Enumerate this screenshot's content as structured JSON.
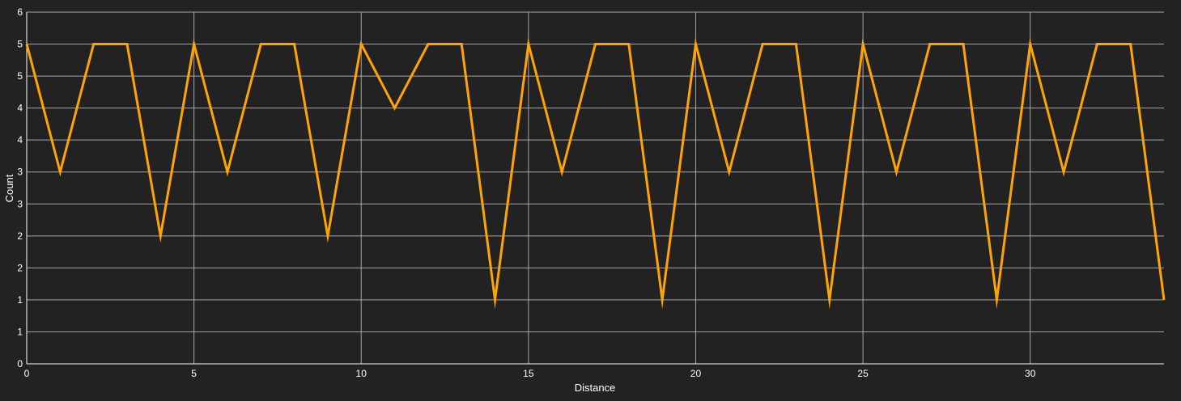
{
  "chart_data": {
    "type": "line",
    "xlabel": "Distance",
    "ylabel": "Count",
    "xlim": [
      0,
      34
    ],
    "ylim": [
      0,
      5.5
    ],
    "grid": true,
    "x_ticks": [
      0,
      5,
      10,
      15,
      20,
      25,
      30
    ],
    "y_ticks": [
      0,
      0.5,
      1,
      1.5,
      2,
      2.5,
      3,
      3.5,
      4,
      4.5,
      5,
      5.5
    ],
    "y_tick_labels": [
      "0",
      "1",
      "1",
      "2",
      "2",
      "3",
      "3",
      "4",
      "4",
      "5",
      "5",
      "6"
    ],
    "series": [
      {
        "color": "#FFA500",
        "x": [
          0,
          1,
          2,
          3,
          4,
          5,
          6,
          7,
          8,
          9,
          10,
          11,
          12,
          13,
          14,
          15,
          16,
          17,
          18,
          19,
          20,
          21,
          22,
          23,
          24,
          25,
          26,
          27,
          28,
          29,
          30,
          31,
          32,
          33,
          34
        ],
        "y": [
          5,
          3,
          5,
          5,
          2,
          5,
          3,
          5,
          5,
          2,
          5,
          4,
          5,
          5,
          1,
          5,
          3,
          5,
          5,
          1,
          5,
          3,
          5,
          5,
          1,
          5,
          3,
          5,
          5,
          1,
          5,
          3,
          5,
          5,
          1
        ]
      }
    ]
  }
}
